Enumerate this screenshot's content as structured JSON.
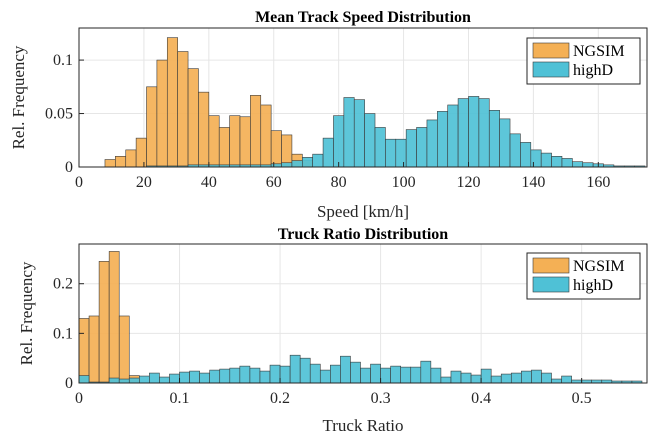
{
  "chart_data": [
    {
      "type": "bar",
      "title": "Mean Track Speed Distribution",
      "xlabel": "Speed [km/h]",
      "ylabel": "Rel. Frequency",
      "xlim": [
        0,
        175
      ],
      "ylim": [
        0,
        0.13
      ],
      "xticks": [
        0,
        20,
        40,
        60,
        80,
        100,
        120,
        140,
        160
      ],
      "yticks": [
        0,
        0.05,
        0.1
      ],
      "ytick_labels": [
        "0",
        "0.05",
        "0.1"
      ],
      "bin_width": 3.2,
      "grid": true,
      "legend_position": "top-right",
      "series": [
        {
          "name": "NGSIM",
          "color": "#F4B055",
          "bin_starts": [
            8,
            11.2,
            14.4,
            17.6,
            20.8,
            24,
            27.2,
            30.4,
            33.6,
            36.8,
            40,
            43.2,
            46.4,
            49.6,
            52.8,
            56,
            59.2,
            62.4,
            65.6,
            68.8
          ],
          "values": [
            0.007,
            0.01,
            0.016,
            0.027,
            0.075,
            0.1,
            0.121,
            0.108,
            0.092,
            0.07,
            0.048,
            0.037,
            0.048,
            0.047,
            0.067,
            0.058,
            0.034,
            0.03,
            0.012,
            0.006
          ]
        },
        {
          "name": "highD",
          "color": "#4FC1D6",
          "bin_starts": [
            20.8,
            24,
            27.2,
            30.4,
            33.6,
            36.8,
            40,
            43.2,
            46.4,
            49.6,
            52.8,
            56,
            59.2,
            62.4,
            65.6,
            68.8,
            72,
            75.2,
            78.4,
            81.6,
            84.8,
            88,
            91.2,
            94.4,
            97.6,
            100.8,
            104,
            107.2,
            110.4,
            113.6,
            116.8,
            120,
            123.2,
            126.4,
            129.6,
            132.8,
            136,
            139.2,
            142.4,
            145.6,
            148.8,
            152,
            155.2,
            158.4,
            161.6,
            164.8,
            168,
            171.2
          ],
          "values": [
            0.001,
            0.001,
            0.001,
            0.001,
            0.002,
            0.002,
            0.002,
            0.002,
            0.002,
            0.002,
            0.002,
            0.002,
            0.003,
            0.004,
            0.006,
            0.009,
            0.012,
            0.027,
            0.048,
            0.065,
            0.063,
            0.05,
            0.037,
            0.026,
            0.026,
            0.035,
            0.037,
            0.044,
            0.052,
            0.058,
            0.064,
            0.066,
            0.064,
            0.053,
            0.045,
            0.031,
            0.023,
            0.016,
            0.013,
            0.01,
            0.008,
            0.005,
            0.004,
            0.003,
            0.002,
            0.001,
            0.001,
            0.001
          ]
        }
      ]
    },
    {
      "type": "bar",
      "title": "Truck Ratio Distribution",
      "xlabel": "Truck Ratio",
      "ylabel": "Rel. Frequency",
      "xlim": [
        0,
        0.565
      ],
      "ylim": [
        0,
        0.28
      ],
      "xticks": [
        0,
        0.1,
        0.2,
        0.3,
        0.4,
        0.5
      ],
      "xtick_labels": [
        "0",
        "0.1",
        "0.2",
        "0.3",
        "0.4",
        "0.5"
      ],
      "yticks": [
        0,
        0.1,
        0.2
      ],
      "ytick_labels": [
        "0",
        "0.1",
        "0.2"
      ],
      "bin_width": 0.01,
      "grid": true,
      "legend_position": "top-right",
      "series": [
        {
          "name": "NGSIM",
          "color": "#F4B055",
          "bin_starts": [
            0,
            0.01,
            0.02,
            0.03,
            0.04,
            0.05
          ],
          "values": [
            0.13,
            0.135,
            0.245,
            0.265,
            0.135,
            0.015
          ]
        },
        {
          "name": "highD",
          "color": "#4FC1D6",
          "bin_starts": [
            0,
            0.01,
            0.02,
            0.03,
            0.04,
            0.05,
            0.06,
            0.07,
            0.08,
            0.09,
            0.1,
            0.11,
            0.12,
            0.13,
            0.14,
            0.15,
            0.16,
            0.17,
            0.18,
            0.19,
            0.2,
            0.21,
            0.22,
            0.23,
            0.24,
            0.25,
            0.26,
            0.27,
            0.28,
            0.29,
            0.3,
            0.31,
            0.32,
            0.33,
            0.34,
            0.35,
            0.36,
            0.37,
            0.38,
            0.39,
            0.4,
            0.41,
            0.42,
            0.43,
            0.44,
            0.45,
            0.46,
            0.47,
            0.48,
            0.49,
            0.5,
            0.51,
            0.52,
            0.53,
            0.54,
            0.55
          ],
          "values": [
            0.015,
            0.002,
            0.002,
            0.01,
            0.008,
            0.01,
            0.014,
            0.02,
            0.012,
            0.018,
            0.022,
            0.024,
            0.02,
            0.026,
            0.028,
            0.03,
            0.034,
            0.03,
            0.024,
            0.036,
            0.034,
            0.056,
            0.05,
            0.038,
            0.026,
            0.036,
            0.054,
            0.042,
            0.03,
            0.038,
            0.03,
            0.034,
            0.032,
            0.032,
            0.044,
            0.03,
            0.012,
            0.024,
            0.02,
            0.016,
            0.028,
            0.014,
            0.018,
            0.02,
            0.024,
            0.026,
            0.02,
            0.008,
            0.014,
            0.006,
            0.006,
            0.006,
            0.006,
            0.004,
            0.004,
            0.004
          ]
        }
      ]
    }
  ]
}
